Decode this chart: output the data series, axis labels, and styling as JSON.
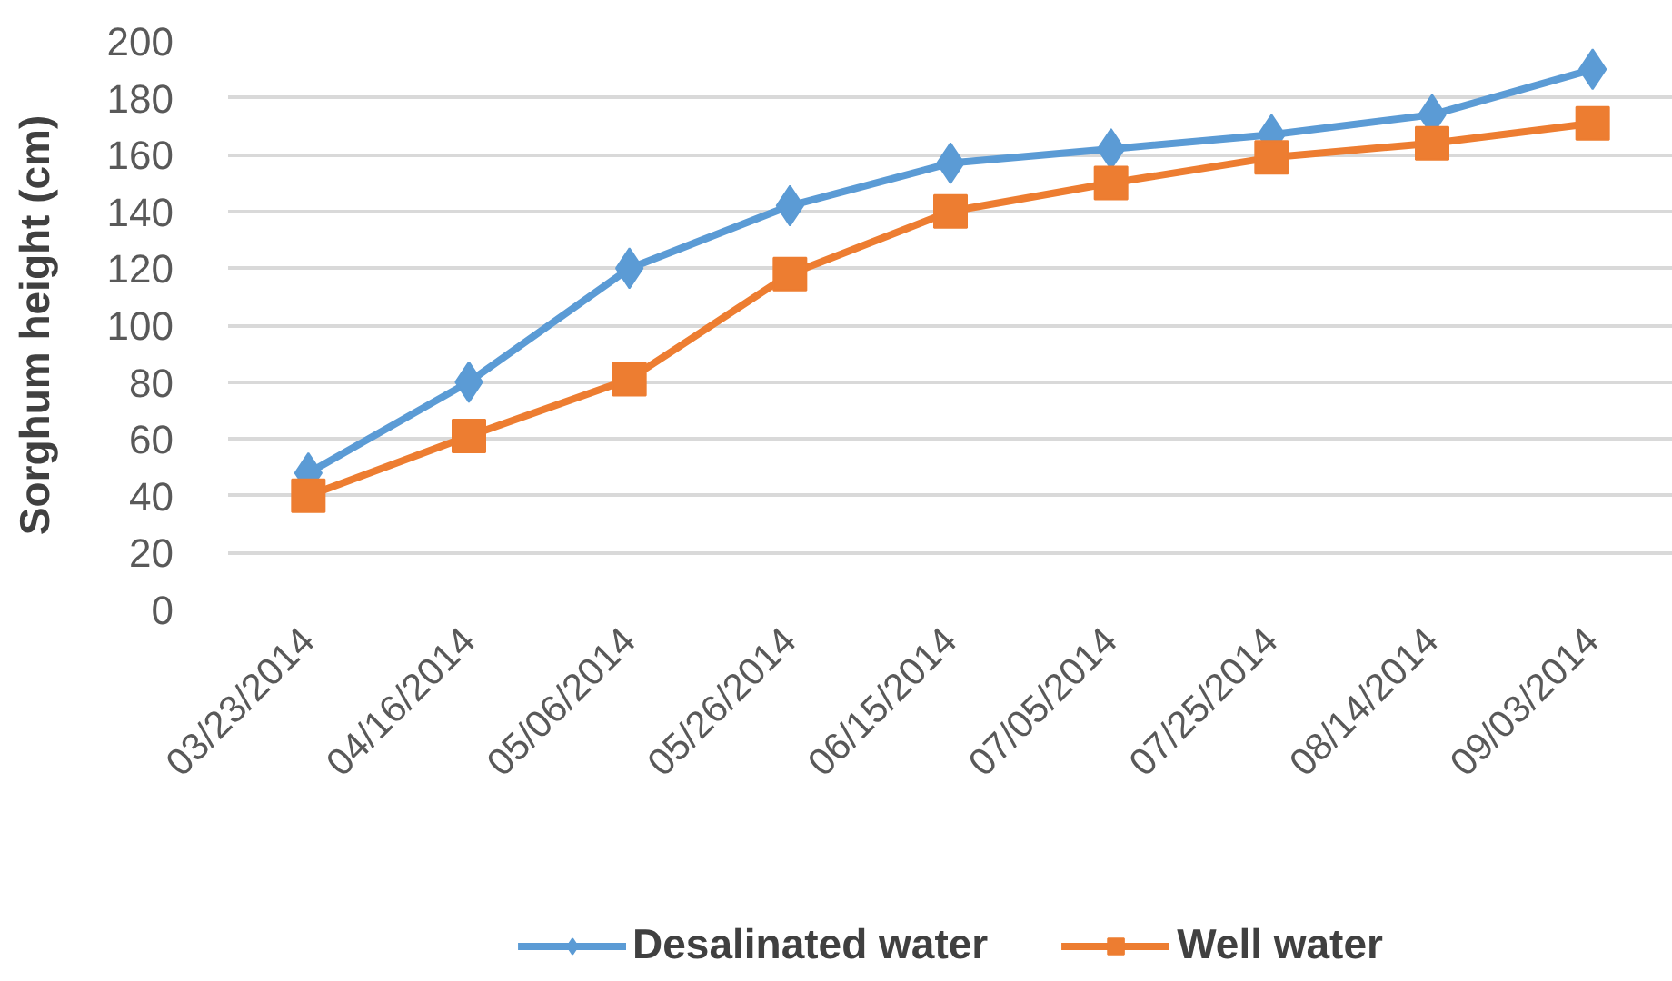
{
  "chart_data": {
    "type": "line",
    "ylabel": "Sorghum height (cm)",
    "categories": [
      "03/23/2014",
      "04/16/2014",
      "05/06/2014",
      "05/26/2014",
      "06/15/2014",
      "07/05/2014",
      "07/25/2014",
      "08/14/2014",
      "09/03/2014"
    ],
    "series": [
      {
        "name": "Desalinated water",
        "color": "#5b9bd5",
        "marker": "diamond",
        "values": [
          48,
          80,
          120,
          142,
          157,
          162,
          167,
          174,
          190
        ]
      },
      {
        "name": "Well water",
        "color": "#ed7d31",
        "marker": "square",
        "values": [
          40,
          61,
          81,
          118,
          140,
          150,
          159,
          164,
          171
        ]
      }
    ],
    "ylim": [
      0,
      200
    ],
    "yticks": [
      0,
      20,
      40,
      60,
      80,
      100,
      120,
      140,
      160,
      180,
      200
    ],
    "grid": "y",
    "legend": "bottom",
    "line_style": "solid"
  }
}
